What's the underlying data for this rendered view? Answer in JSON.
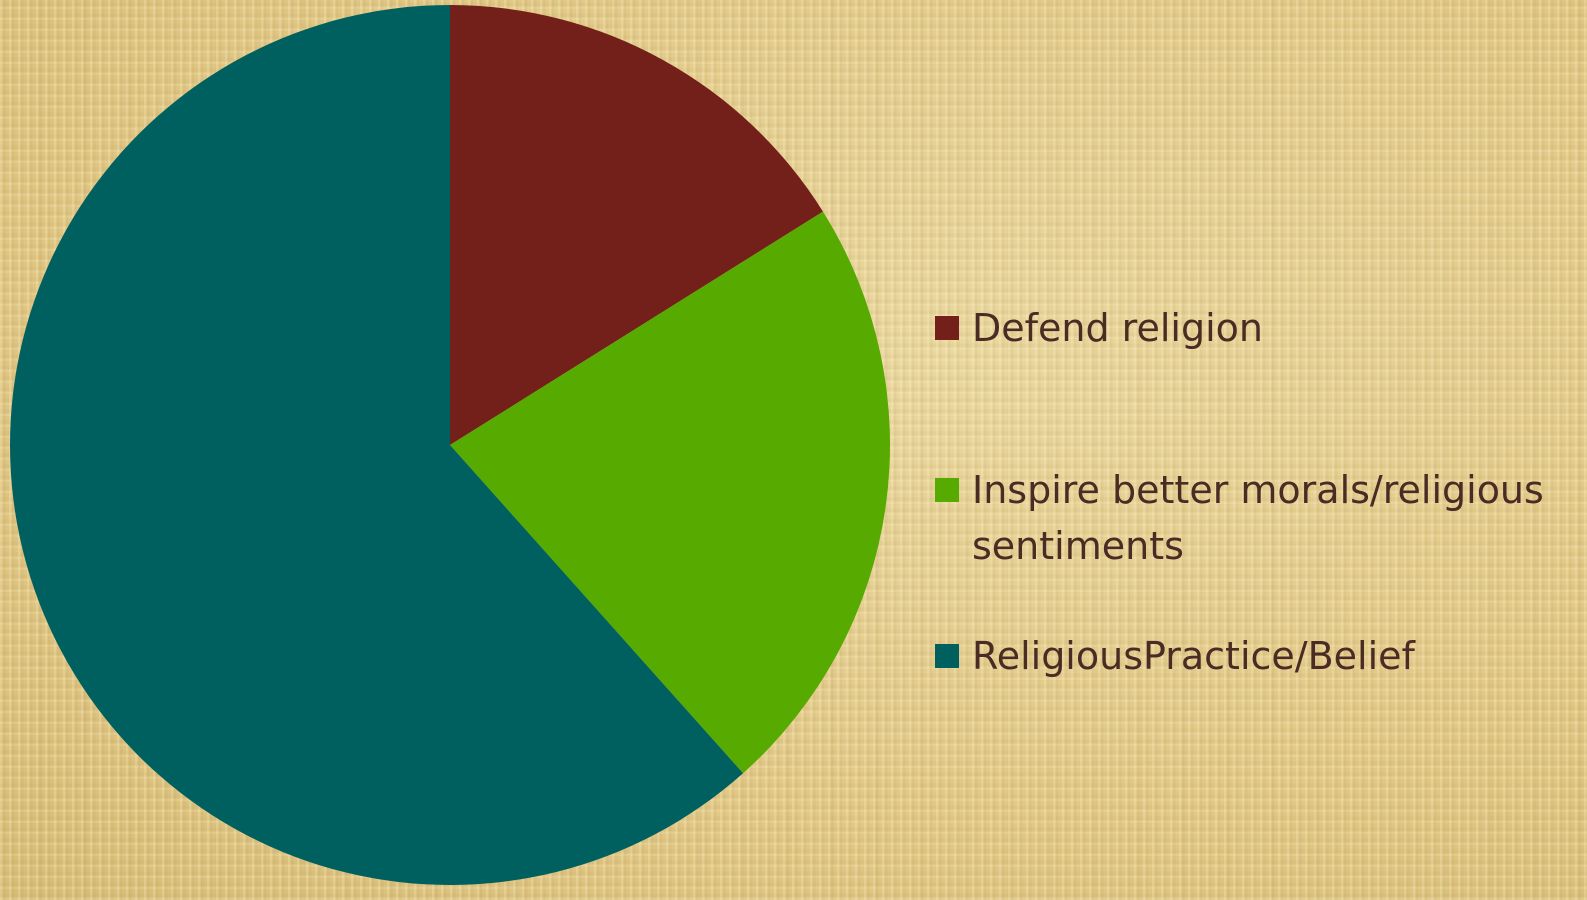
{
  "chart_data": {
    "type": "pie",
    "title": "",
    "legend_position": "right",
    "categories": [
      "Defend religion",
      "Inspire better morals/religious sentiments",
      "ReligiousPractice/Belief"
    ],
    "values": [
      16.1,
      22.3,
      61.6
    ],
    "colors": [
      "#722019",
      "#57aa00",
      "#006060"
    ],
    "start_angle_deg": 0,
    "direction": "clockwise"
  }
}
